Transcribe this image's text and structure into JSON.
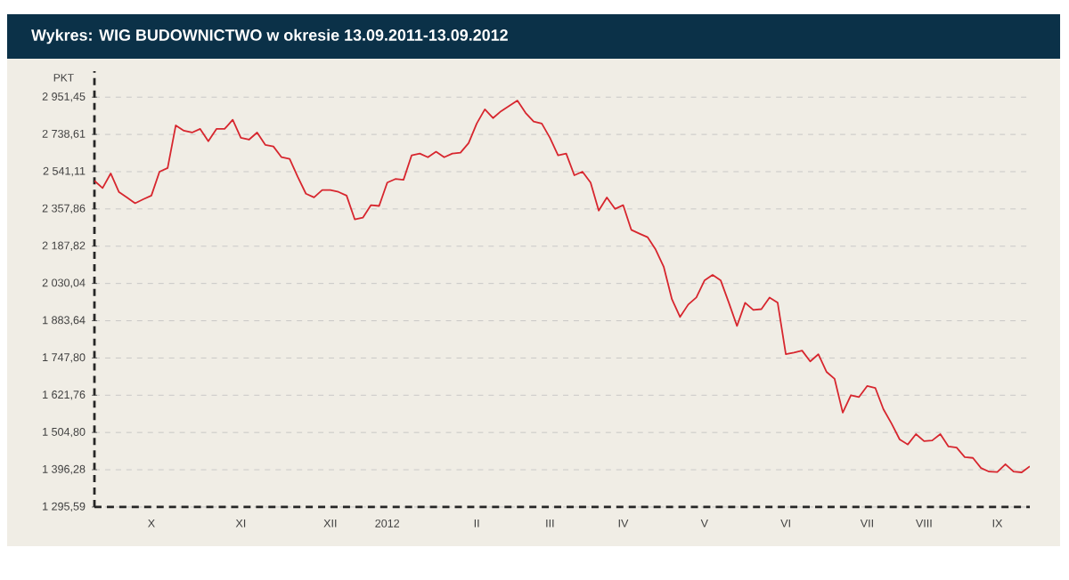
{
  "chart_data": {
    "type": "line",
    "title": "Wykres: WIG BUDOWNICTWO w okresie 13.09.2011-13.09.2012",
    "ylabel": "PKT",
    "color": "#d7262e",
    "log": true,
    "grid": "y",
    "categories": [
      null,
      null,
      null,
      null,
      null,
      null,
      null,
      "X",
      null,
      null,
      null,
      null,
      null,
      null,
      null,
      null,
      null,
      null,
      "XI",
      null,
      null,
      null,
      null,
      null,
      null,
      null,
      null,
      null,
      null,
      "XII",
      null,
      null,
      null,
      null,
      null,
      null,
      "2012",
      null,
      null,
      null,
      null,
      null,
      null,
      null,
      null,
      null,
      null,
      "II",
      null,
      null,
      null,
      null,
      null,
      null,
      null,
      null,
      "III",
      null,
      null,
      null,
      null,
      null,
      null,
      null,
      null,
      "IV",
      null,
      null,
      null,
      null,
      null,
      null,
      null,
      null,
      null,
      "V",
      null,
      null,
      null,
      null,
      null,
      null,
      null,
      null,
      null,
      "VI",
      null,
      null,
      null,
      null,
      null,
      null,
      null,
      null,
      null,
      "VII",
      null,
      null,
      null,
      null,
      null,
      null,
      "VIII",
      null,
      null,
      null,
      null,
      null,
      null,
      null,
      null,
      "IX",
      null,
      null,
      null,
      null
    ],
    "values": [
      2495,
      2459,
      2532,
      2440,
      2413,
      2385,
      2404,
      2422,
      2541,
      2560,
      2789,
      2759,
      2749,
      2769,
      2701,
      2769,
      2769,
      2820,
      2720,
      2710,
      2749,
      2682,
      2673,
      2616,
      2607,
      2514,
      2431,
      2413,
      2449,
      2449,
      2440,
      2422,
      2309,
      2317,
      2376,
      2372,
      2486,
      2504,
      2500,
      2626,
      2635,
      2616,
      2645,
      2616,
      2635,
      2640,
      2691,
      2799,
      2880,
      2830,
      2870,
      2900,
      2931,
      2860,
      2810,
      2799,
      2720,
      2626,
      2635,
      2523,
      2541,
      2486,
      2350,
      2413,
      2358,
      2376,
      2261,
      2244,
      2228,
      2173,
      2098,
      1967,
      1898,
      1946,
      1974,
      2042,
      2065,
      2042,
      1953,
      1864,
      1953,
      1925,
      1928,
      1974,
      1953,
      1761,
      1767,
      1774,
      1736,
      1761,
      1700,
      1676,
      1566,
      1622,
      1616,
      1652,
      1646,
      1577,
      1532,
      1484,
      1469,
      1500,
      1479,
      1481,
      1500,
      1463,
      1460,
      1432,
      1430,
      1401,
      1391,
      1390,
      1412,
      1391,
      1389,
      1406
    ],
    "ylim": [
      1295.59,
      3110
    ],
    "yticks": [
      {
        "value": 1295.59,
        "label": "1 295,59"
      },
      {
        "value": 1396.28,
        "label": "1 396,28"
      },
      {
        "value": 1504.8,
        "label": "1 504,80"
      },
      {
        "value": 1621.76,
        "label": "1 621,76"
      },
      {
        "value": 1747.8,
        "label": "1 747,80"
      },
      {
        "value": 1883.64,
        "label": "1 883,64"
      },
      {
        "value": 2030.04,
        "label": "2 030,04"
      },
      {
        "value": 2187.82,
        "label": "2 187,82"
      },
      {
        "value": 2357.86,
        "label": "2 357,86"
      },
      {
        "value": 2541.11,
        "label": "2 541,11"
      },
      {
        "value": 2738.61,
        "label": "2 738,61"
      },
      {
        "value": 2951.45,
        "label": "2 951,45"
      }
    ]
  }
}
